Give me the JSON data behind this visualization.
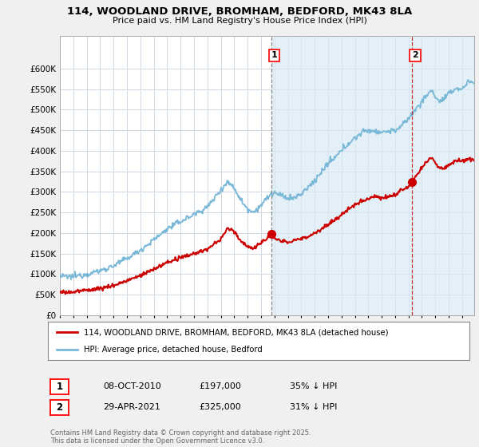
{
  "title": "114, WOODLAND DRIVE, BROMHAM, BEDFORD, MK43 8LA",
  "subtitle": "Price paid vs. HM Land Registry's House Price Index (HPI)",
  "hpi_label": "HPI: Average price, detached house, Bedford",
  "property_label": "114, WOODLAND DRIVE, BROMHAM, BEDFORD, MK43 8LA (detached house)",
  "hpi_color": "#7ab8d8",
  "property_color": "#cc0000",
  "grid_color": "#d0d8e4",
  "background_color": "#f0f0f0",
  "plot_bg_color": "#ffffff",
  "shade_color": "#d8eaf5",
  "annotation1": {
    "label": "1",
    "date": "08-OCT-2010",
    "price": "£197,000",
    "pct": "35% ↓ HPI"
  },
  "annotation2": {
    "label": "2",
    "date": "29-APR-2021",
    "price": "£325,000",
    "pct": "31% ↓ HPI"
  },
  "footer": "Contains HM Land Registry data © Crown copyright and database right 2025.\nThis data is licensed under the Open Government Licence v3.0.",
  "ylim": [
    0,
    680000
  ],
  "yticks": [
    0,
    50000,
    100000,
    150000,
    200000,
    250000,
    300000,
    350000,
    400000,
    450000,
    500000,
    550000,
    600000
  ],
  "xlim_start": 1995.0,
  "xlim_end": 2025.9
}
